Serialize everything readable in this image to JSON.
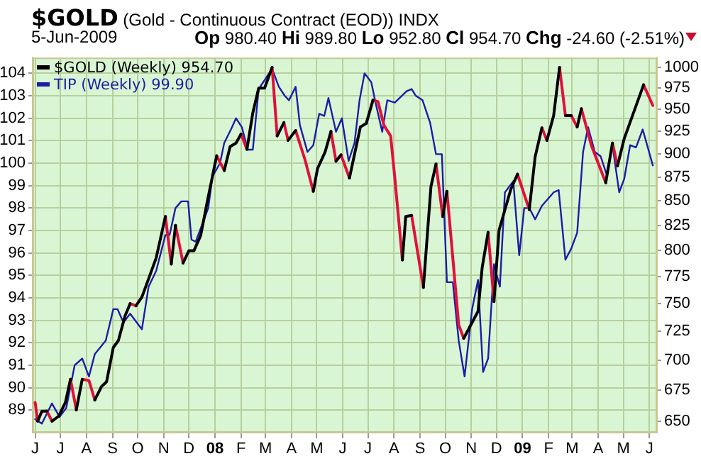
{
  "chart_data": {
    "type": "line",
    "title": "$GOLD (Gold - Continuous Contract (EOD)) INDX",
    "subtitle": "5-Jun-2009",
    "annotations": [
      "Op 980.40 Hi 989.80 Lo 952.80 Cl 954.70 Chg -24.60 (-2.51%)"
    ],
    "xlim": [
      "2007-05-29",
      "2009-06-10"
    ],
    "xticks": [
      {
        "value": "2007-06-01",
        "label": "J"
      },
      {
        "value": "2007-07-01",
        "label": "J"
      },
      {
        "value": "2007-08-01",
        "label": "A"
      },
      {
        "value": "2007-09-01",
        "label": "S"
      },
      {
        "value": "2007-10-01",
        "label": "O"
      },
      {
        "value": "2007-11-01",
        "label": "N"
      },
      {
        "value": "2007-12-01",
        "label": "D"
      },
      {
        "value": "2008-01-01",
        "label": "08"
      },
      {
        "value": "2008-02-01",
        "label": "F"
      },
      {
        "value": "2008-03-01",
        "label": "M"
      },
      {
        "value": "2008-04-01",
        "label": "A"
      },
      {
        "value": "2008-05-01",
        "label": "M"
      },
      {
        "value": "2008-06-01",
        "label": "J"
      },
      {
        "value": "2008-07-01",
        "label": "J"
      },
      {
        "value": "2008-08-01",
        "label": "A"
      },
      {
        "value": "2008-09-01",
        "label": "S"
      },
      {
        "value": "2008-10-01",
        "label": "O"
      },
      {
        "value": "2008-11-01",
        "label": "N"
      },
      {
        "value": "2008-12-01",
        "label": "D"
      },
      {
        "value": "2009-01-01",
        "label": "09"
      },
      {
        "value": "2009-02-01",
        "label": "F"
      },
      {
        "value": "2009-03-01",
        "label": "M"
      },
      {
        "value": "2009-04-01",
        "label": "A"
      },
      {
        "value": "2009-05-01",
        "label": "M"
      },
      {
        "value": "2009-06-01",
        "label": "J"
      }
    ],
    "ylim": [
      88.0,
      104.7
    ],
    "yticks": [
      89,
      90,
      91,
      92,
      93,
      94,
      95,
      96,
      97,
      98,
      99,
      100,
      101,
      102,
      103,
      104
    ],
    "y2lim": [
      641,
      1012
    ],
    "y2ticks": [
      650,
      675,
      700,
      725,
      750,
      775,
      800,
      825,
      850,
      875,
      900,
      925,
      950,
      975,
      1000
    ],
    "log": "y2",
    "grid": true,
    "legend": "top left",
    "series": [
      {
        "name": "$GOLD (Weekly) 954.70",
        "axis": "y2",
        "color": "#000000",
        "x": [
          "2007-06-04",
          "2007-06-09",
          "2007-06-15",
          "2007-06-16",
          "2007-06-21",
          "2007-06-29",
          "2007-07-07",
          "2007-07-13",
          "2007-07-14",
          "2007-07-20",
          "2007-07-27",
          "2007-07-28",
          "2007-08-11",
          "2007-08-19",
          "2007-08-25",
          "2007-09-02",
          "2007-09-08",
          "2007-09-16",
          "2007-09-22",
          "2007-09-23",
          "2007-09-29",
          "2007-10-06",
          "2007-10-14",
          "2007-10-23",
          "2007-11-03",
          "2007-11-04",
          "2007-11-10",
          "2007-11-15",
          "2007-11-16",
          "2007-11-24",
          "2007-12-01",
          "2007-12-07",
          "2007-12-15",
          "2007-12-23",
          "2008-01-03",
          "2008-01-04",
          "2008-01-12",
          "2008-01-19",
          "2008-01-26",
          "2008-02-01",
          "2008-02-02",
          "2008-02-08",
          "2008-02-15",
          "2008-02-22",
          "2008-02-29",
          "2008-03-09",
          "2008-03-10",
          "2008-03-15",
          "2008-03-23",
          "2008-03-24",
          "2008-03-28",
          "2008-04-06",
          "2008-04-07",
          "2008-04-27",
          "2008-05-02",
          "2008-05-11",
          "2008-05-18",
          "2008-05-19",
          "2008-05-24",
          "2008-05-30",
          "2008-05-31",
          "2008-06-09",
          "2008-06-22",
          "2008-06-29",
          "2008-07-07",
          "2008-07-08",
          "2008-08-11",
          "2008-08-15",
          "2008-08-22",
          "2008-08-23",
          "2008-09-05",
          "2008-09-14",
          "2008-09-20",
          "2008-09-21",
          "2008-09-28",
          "2008-10-03",
          "2008-10-04",
          "2008-10-23",
          "2008-11-09",
          "2008-11-14",
          "2008-11-21",
          "2008-11-22",
          "2008-11-28",
          "2008-12-04",
          "2008-12-18",
          "2008-12-26",
          "2008-12-27",
          "2009-01-09",
          "2009-01-16",
          "2009-01-24",
          "2009-01-25",
          "2009-01-30",
          "2009-02-07",
          "2009-02-14",
          "2009-02-15",
          "2009-02-21",
          "2009-02-28",
          "2009-03-01",
          "2009-03-07",
          "2009-03-12",
          "2009-03-13",
          "2009-04-10",
          "2009-04-18",
          "2009-04-19",
          "2009-04-24",
          "2009-05-02",
          "2009-05-25"
        ],
        "values": [
          650,
          658,
          658,
          null,
          650,
          654,
          665,
          684,
          null,
          659,
          684,
          null,
          667,
          678,
          682,
          711,
          717,
          739,
          750,
          null,
          748,
          756,
          773,
          793,
          834,
          null,
          787,
          825,
          null,
          788,
          800,
          800,
          815,
          850,
          898,
          null,
          882,
          908,
          912,
          922,
          null,
          905,
          946,
          975,
          975,
          1000,
          null,
          920,
          935,
          null,
          915,
          926,
          null,
          860,
          884,
          902,
          925,
          null,
          892,
          899,
          null,
          874,
          930,
          934,
          961,
          null,
          791,
          834,
          835,
          null,
          765,
          865,
          889,
          null,
          834,
          860,
          null,
          719,
          743,
          784,
          818,
          null,
          752,
          820,
          862,
          878,
          null,
          841,
          897,
          929,
          null,
          915,
          943,
          1000,
          null,
          943,
          943,
          null,
          930,
          951,
          null,
          869,
          912,
          null,
          887,
          917,
          979
        ]
      },
      {
        "axis": "y2",
        "color": "#e0103a",
        "x": [
          "2007-06-01",
          "2007-06-04",
          "2007-06-05",
          "2007-06-15",
          "2007-06-21",
          "2007-06-22",
          "2007-07-13",
          "2007-07-20",
          "2007-07-21",
          "2007-07-27",
          "2007-08-04",
          "2007-08-11",
          "2007-08-12",
          "2007-09-22",
          "2007-09-29",
          "2007-09-30",
          "2007-11-03",
          "2007-11-10",
          "2007-11-11",
          "2007-11-15",
          "2007-11-24",
          "2007-11-25",
          "2008-01-03",
          "2008-01-12",
          "2008-01-13",
          "2008-02-01",
          "2008-02-08",
          "2008-02-09",
          "2008-03-09",
          "2008-03-15",
          "2008-03-16",
          "2008-03-23",
          "2008-03-28",
          "2008-03-29",
          "2008-04-06",
          "2008-04-17",
          "2008-04-27",
          "2008-04-28",
          "2008-05-18",
          "2008-05-24",
          "2008-05-25",
          "2008-05-30",
          "2008-06-09",
          "2008-06-10",
          "2008-07-07",
          "2008-07-13",
          "2008-07-20",
          "2008-07-28",
          "2008-08-02",
          "2008-08-11",
          "2008-08-12",
          "2008-08-22",
          "2008-09-05",
          "2008-09-06",
          "2008-09-20",
          "2008-09-28",
          "2008-09-29",
          "2008-10-03",
          "2008-10-17",
          "2008-10-23",
          "2008-10-24",
          "2008-11-21",
          "2008-11-28",
          "2008-11-29",
          "2008-12-26",
          "2009-01-09",
          "2009-01-10",
          "2009-01-24",
          "2009-01-30",
          "2009-01-31",
          "2009-02-14",
          "2009-02-21",
          "2009-02-22",
          "2009-02-28",
          "2009-03-07",
          "2009-03-08",
          "2009-03-12",
          "2009-03-24",
          "2009-04-10",
          "2009-04-11",
          "2009-04-18",
          "2009-04-24",
          "2009-04-25",
          "2009-05-25",
          "2009-06-05"
        ],
        "values": [
          665,
          650,
          null,
          658,
          650,
          null,
          684,
          659,
          null,
          684,
          683,
          667,
          null,
          750,
          748,
          null,
          834,
          787,
          null,
          825,
          788,
          null,
          898,
          882,
          null,
          922,
          905,
          null,
          1000,
          920,
          null,
          935,
          915,
          null,
          926,
          894,
          860,
          null,
          925,
          892,
          null,
          899,
          874,
          null,
          961,
          959,
          932,
          920,
          874,
          791,
          null,
          835,
          765,
          null,
          889,
          834,
          null,
          860,
          731,
          719,
          null,
          818,
          752,
          null,
          878,
          841,
          null,
          929,
          915,
          null,
          1000,
          943,
          null,
          943,
          930,
          null,
          951,
          909,
          869,
          null,
          912,
          887,
          null,
          979,
          954.7
        ]
      },
      {
        "name": "TIP (Weekly) 99.90",
        "color": "#1c1ca8",
        "x": [
          "2007-06-01",
          "2007-06-09",
          "2007-06-21",
          "2007-06-30",
          "2007-07-08",
          "2007-07-18",
          "2007-07-27",
          "2007-08-04",
          "2007-08-11",
          "2007-08-24",
          "2007-09-02",
          "2007-09-07",
          "2007-09-14",
          "2007-09-22",
          "2007-10-06",
          "2007-10-14",
          "2007-10-23",
          "2007-11-03",
          "2007-11-08",
          "2007-11-15",
          "2007-11-22",
          "2007-11-30",
          "2007-12-04",
          "2007-12-09",
          "2007-12-24",
          "2007-12-29",
          "2008-01-07",
          "2008-01-12",
          "2008-01-20",
          "2008-01-26",
          "2008-02-02",
          "2008-02-09",
          "2008-02-15",
          "2008-02-22",
          "2008-03-09",
          "2008-03-17",
          "2008-03-24",
          "2008-03-29",
          "2008-04-06",
          "2008-04-11",
          "2008-04-20",
          "2008-04-27",
          "2008-05-04",
          "2008-05-10",
          "2008-05-15",
          "2008-05-24",
          "2008-05-31",
          "2008-06-08",
          "2008-06-15",
          "2008-06-21",
          "2008-06-27",
          "2008-07-05",
          "2008-07-10",
          "2008-07-18",
          "2008-07-24",
          "2008-08-02",
          "2008-08-16",
          "2008-08-22",
          "2008-08-27",
          "2008-09-04",
          "2008-09-13",
          "2008-09-20",
          "2008-09-27",
          "2008-10-03",
          "2008-10-10",
          "2008-10-17",
          "2008-10-24",
          "2008-11-02",
          "2008-11-09",
          "2008-11-15",
          "2008-11-21",
          "2008-11-28",
          "2008-12-05",
          "2008-12-11",
          "2008-12-21",
          "2008-12-28",
          "2009-01-03",
          "2009-01-09",
          "2009-01-16",
          "2009-01-24",
          "2009-02-07",
          "2009-02-13",
          "2009-02-21",
          "2009-02-28",
          "2009-03-07",
          "2009-03-14",
          "2009-03-20",
          "2009-03-28",
          "2009-04-04",
          "2009-04-11",
          "2009-04-18",
          "2009-04-26",
          "2009-05-02",
          "2009-05-09",
          "2009-05-16",
          "2009-05-24",
          "2009-06-05"
        ],
        "values": [
          88.6,
          88.4,
          89.3,
          88.7,
          89.1,
          91.0,
          91.3,
          90.5,
          91.5,
          92.1,
          93.5,
          93.5,
          92.9,
          93.3,
          92.6,
          94.5,
          95.2,
          96.8,
          96.8,
          98.0,
          98.3,
          98.3,
          96.6,
          96.5,
          98.0,
          99.4,
          100.0,
          100.9,
          101.5,
          102.0,
          101.6,
          100.6,
          100.6,
          103.3,
          104.2,
          103.4,
          103.0,
          102.8,
          103.4,
          101.7,
          100.5,
          100.8,
          102.2,
          102.1,
          102.9,
          101.4,
          102.0,
          100.1,
          100.9,
          102.8,
          104.0,
          103.6,
          102.7,
          101.4,
          102.8,
          102.7,
          103.2,
          103.3,
          103.0,
          102.8,
          101.8,
          100.4,
          100.4,
          94.7,
          94.7,
          92.1,
          90.5,
          93.5,
          94.8,
          90.7,
          91.3,
          95.5,
          94.5,
          98.7,
          99.2,
          95.9,
          98.0,
          98.0,
          97.5,
          98.1,
          98.7,
          98.8,
          95.7,
          96.2,
          96.9,
          100.5,
          101.6,
          100.5,
          100.3,
          99.5,
          100.8,
          98.7,
          99.3,
          100.8,
          100.7,
          101.5,
          99.9
        ]
      }
    ]
  }
}
